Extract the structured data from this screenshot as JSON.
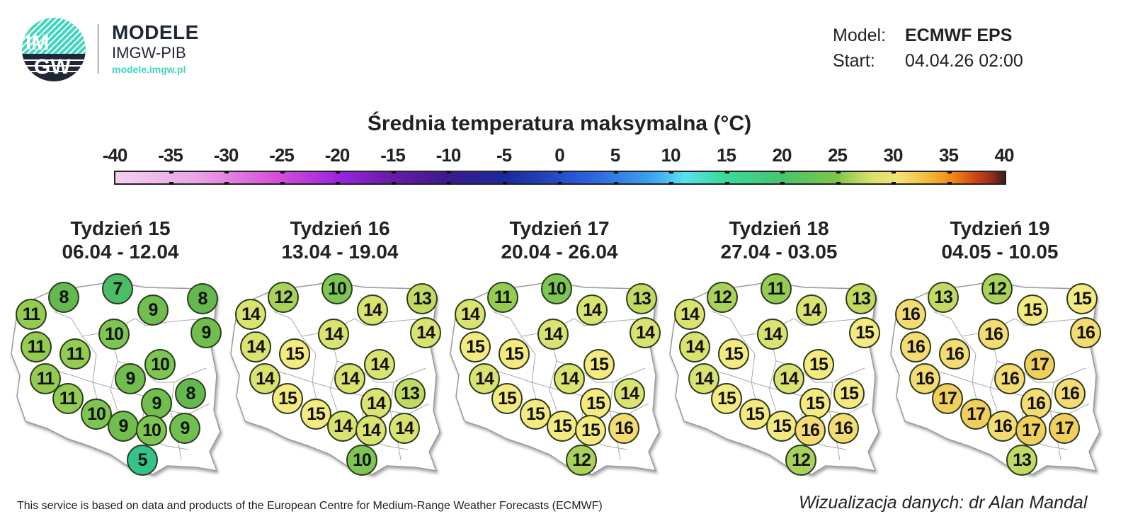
{
  "header": {
    "logo_text_top": "IM",
    "logo_text_bottom": "GW",
    "brand_title": "MODELE",
    "brand_subtitle": "IMGW-PIB",
    "brand_url": "modele.imgw.pl",
    "model_label": "Model:",
    "model_value": "ECMWF EPS",
    "start_label": "Start:",
    "start_value": "04.04.26 02:00"
  },
  "scale": {
    "title": "Średnia temperatura maksymalna (°C)",
    "ticks": [
      "-40",
      "-35",
      "-30",
      "-25",
      "-20",
      "-15",
      "-10",
      "-5",
      "0",
      "5",
      "10",
      "15",
      "20",
      "25",
      "30",
      "35",
      "40"
    ],
    "min": -40,
    "max": 40
  },
  "colors": {
    "t5": "#34c48a",
    "t7": "#4bbd66",
    "t8": "#63b84e",
    "t9": "#6fbe4e",
    "t10": "#7ec652",
    "t11": "#94cc52",
    "t12": "#a8d25a",
    "t13": "#c2da62",
    "t14": "#dae270",
    "t15": "#f4ea80",
    "t16": "#f4dc72",
    "t17": "#f1cf5c",
    "brand_teal": "#3fd6bd",
    "brand_navy": "#1f2638"
  },
  "weeks": [
    {
      "title": "Tydzień 15",
      "dates": "06.04 - 12.04"
    },
    {
      "title": "Tydzień 16",
      "dates": "13.04 - 19.04"
    },
    {
      "title": "Tydzień 17",
      "dates": "20.04 - 26.04"
    },
    {
      "title": "Tydzień 18",
      "dates": "27.04 - 03.05"
    },
    {
      "title": "Tydzień 19",
      "dates": "04.05 - 10.05"
    }
  ],
  "chart_data": {
    "type": "map",
    "title": "Średnia temperatura maksymalna (°C)",
    "model": "ECMWF EPS",
    "start": "04.04.26 02:00",
    "legend": {
      "min": -40,
      "max": 40,
      "step": 5
    },
    "point_order": [
      "NW1",
      "N-west",
      "N-center",
      "N-east-mid",
      "NE-top",
      "NE-mid",
      "Center-north",
      "W1",
      "W-center",
      "W2",
      "E-center",
      "Center",
      "SW1",
      "SW2",
      "Center-south",
      "E-south",
      "S1",
      "S-center",
      "SE",
      "S-tip"
    ],
    "series": [
      {
        "name": "Tydzień 15 (06.04 - 12.04)",
        "values": [
          11,
          8,
          7,
          9,
          8,
          9,
          10,
          11,
          11,
          11,
          10,
          9,
          11,
          10,
          9,
          8,
          9,
          10,
          9,
          5
        ]
      },
      {
        "name": "Tydzień 16 (13.04 - 19.04)",
        "values": [
          14,
          12,
          10,
          14,
          13,
          14,
          14,
          14,
          15,
          14,
          14,
          14,
          15,
          15,
          14,
          13,
          14,
          14,
          14,
          10
        ]
      },
      {
        "name": "Tydzień 17 (20.04 - 26.04)",
        "values": [
          14,
          11,
          10,
          14,
          13,
          14,
          14,
          15,
          15,
          14,
          15,
          14,
          15,
          15,
          15,
          14,
          15,
          15,
          16,
          12
        ]
      },
      {
        "name": "Tydzień 18 (27.04 - 03.05)",
        "values": [
          14,
          12,
          11,
          14,
          13,
          15,
          14,
          14,
          15,
          14,
          15,
          14,
          15,
          15,
          15,
          15,
          15,
          16,
          16,
          12
        ]
      },
      {
        "name": "Tydzień 19 (04.05 - 10.05)",
        "values": [
          16,
          13,
          12,
          15,
          15,
          16,
          16,
          16,
          16,
          16,
          17,
          16,
          17,
          17,
          16,
          16,
          16,
          17,
          17,
          13
        ]
      }
    ]
  },
  "footer": {
    "left": "This service is based on data and products of the European Centre for Medium-Range Weather Forecasts (ECMWF)",
    "right": "Wizualizacja danych: dr Alan Mandal"
  }
}
